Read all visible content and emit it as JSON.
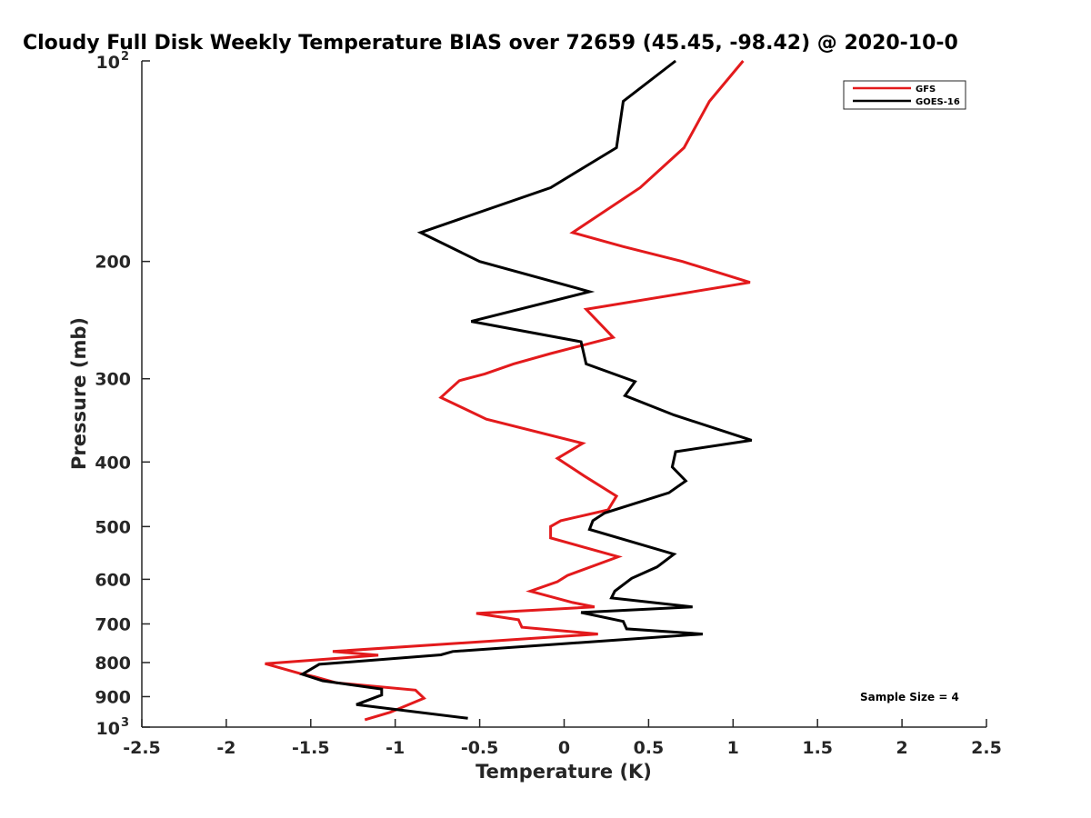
{
  "chart_data": {
    "type": "line",
    "title": "Cloudy Full Disk Weekly Temperature BIAS over 72659 (45.45, -98.42) @ 2020-10-0",
    "xlabel": "Temperature (K)",
    "ylabel": "Pressure (mb)",
    "xlim": [
      -2.5,
      2.5
    ],
    "ylim": [
      100,
      1000
    ],
    "yscale": "log",
    "y_reversed": true,
    "grid": false,
    "legend_position": "top-right",
    "x_ticks": [
      "-2.5",
      "-2",
      "-1.5",
      "-1",
      "-0.5",
      "0",
      "0.5",
      "1",
      "1.5",
      "2",
      "2.5"
    ],
    "y_ticks": [
      {
        "value": 100,
        "base": "10",
        "exp": "2"
      },
      {
        "value": 200,
        "label": "200"
      },
      {
        "value": 300,
        "label": "300"
      },
      {
        "value": 400,
        "label": "400"
      },
      {
        "value": 500,
        "label": "500"
      },
      {
        "value": 600,
        "label": "600"
      },
      {
        "value": 700,
        "label": "700"
      },
      {
        "value": 800,
        "label": "800"
      },
      {
        "value": 900,
        "label": "900"
      },
      {
        "value": 1000,
        "base": "10",
        "exp": "3"
      }
    ],
    "annotation": "Sample Size = 4",
    "series": [
      {
        "name": "GFS",
        "color": "#e31a1c",
        "points": [
          {
            "x": 1.06,
            "y": 100
          },
          {
            "x": 0.86,
            "y": 115
          },
          {
            "x": 0.71,
            "y": 135
          },
          {
            "x": 0.45,
            "y": 155
          },
          {
            "x": 0.05,
            "y": 181
          },
          {
            "x": 0.35,
            "y": 190
          },
          {
            "x": 0.7,
            "y": 200
          },
          {
            "x": 1.1,
            "y": 215
          },
          {
            "x": 0.13,
            "y": 236
          },
          {
            "x": 0.29,
            "y": 260
          },
          {
            "x": -0.08,
            "y": 275
          },
          {
            "x": -0.3,
            "y": 285
          },
          {
            "x": -0.47,
            "y": 295
          },
          {
            "x": -0.62,
            "y": 302
          },
          {
            "x": -0.73,
            "y": 320
          },
          {
            "x": -0.46,
            "y": 345
          },
          {
            "x": 0.11,
            "y": 375
          },
          {
            "x": -0.04,
            "y": 395
          },
          {
            "x": 0.12,
            "y": 420
          },
          {
            "x": 0.31,
            "y": 450
          },
          {
            "x": 0.26,
            "y": 472
          },
          {
            "x": -0.02,
            "y": 490
          },
          {
            "x": -0.08,
            "y": 500
          },
          {
            "x": -0.08,
            "y": 520
          },
          {
            "x": 0.32,
            "y": 555
          },
          {
            "x": 0.02,
            "y": 592
          },
          {
            "x": -0.04,
            "y": 605
          },
          {
            "x": -0.2,
            "y": 625
          },
          {
            "x": 0.05,
            "y": 650
          },
          {
            "x": 0.18,
            "y": 660
          },
          {
            "x": -0.52,
            "y": 675
          },
          {
            "x": -0.27,
            "y": 690
          },
          {
            "x": -0.25,
            "y": 708
          },
          {
            "x": 0.2,
            "y": 725
          },
          {
            "x": -1.37,
            "y": 770
          },
          {
            "x": -1.1,
            "y": 780
          },
          {
            "x": -1.77,
            "y": 803
          },
          {
            "x": -1.57,
            "y": 830
          },
          {
            "x": -1.48,
            "y": 840
          },
          {
            "x": -1.35,
            "y": 858
          },
          {
            "x": -0.88,
            "y": 880
          },
          {
            "x": -0.83,
            "y": 905
          },
          {
            "x": -1.03,
            "y": 950
          },
          {
            "x": -1.18,
            "y": 975
          }
        ]
      },
      {
        "name": "GOES-16",
        "color": "#000000",
        "points": [
          {
            "x": 0.66,
            "y": 100
          },
          {
            "x": 0.35,
            "y": 115
          },
          {
            "x": 0.31,
            "y": 135
          },
          {
            "x": -0.08,
            "y": 155
          },
          {
            "x": -0.85,
            "y": 181
          },
          {
            "x": -0.5,
            "y": 200
          },
          {
            "x": 0.15,
            "y": 222
          },
          {
            "x": -0.55,
            "y": 246
          },
          {
            "x": 0.1,
            "y": 264
          },
          {
            "x": 0.13,
            "y": 285
          },
          {
            "x": 0.42,
            "y": 303
          },
          {
            "x": 0.36,
            "y": 318
          },
          {
            "x": 0.65,
            "y": 340
          },
          {
            "x": 1.11,
            "y": 371
          },
          {
            "x": 0.66,
            "y": 386
          },
          {
            "x": 0.64,
            "y": 407
          },
          {
            "x": 0.72,
            "y": 427
          },
          {
            "x": 0.62,
            "y": 445
          },
          {
            "x": 0.24,
            "y": 477
          },
          {
            "x": 0.17,
            "y": 490
          },
          {
            "x": 0.15,
            "y": 505
          },
          {
            "x": 0.65,
            "y": 550
          },
          {
            "x": 0.55,
            "y": 575
          },
          {
            "x": 0.4,
            "y": 598
          },
          {
            "x": 0.3,
            "y": 625
          },
          {
            "x": 0.28,
            "y": 640
          },
          {
            "x": 0.76,
            "y": 660
          },
          {
            "x": 0.1,
            "y": 673
          },
          {
            "x": 0.35,
            "y": 694
          },
          {
            "x": 0.37,
            "y": 712
          },
          {
            "x": 0.82,
            "y": 725
          },
          {
            "x": -0.66,
            "y": 770
          },
          {
            "x": -0.73,
            "y": 779
          },
          {
            "x": -1.45,
            "y": 805
          },
          {
            "x": -1.55,
            "y": 833
          },
          {
            "x": -1.43,
            "y": 852
          },
          {
            "x": -1.08,
            "y": 877
          },
          {
            "x": -1.08,
            "y": 895
          },
          {
            "x": -1.23,
            "y": 925
          },
          {
            "x": -0.57,
            "y": 970
          }
        ]
      }
    ]
  }
}
